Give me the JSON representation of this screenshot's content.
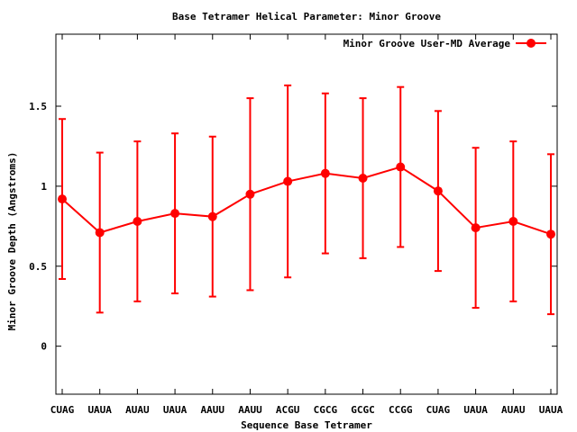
{
  "chart_data": {
    "type": "line",
    "title": "Base Tetramer Helical Parameter: Minor Groove",
    "xlabel": "Sequence Base Tetramer",
    "ylabel": "Minor Groove Depth (Angstroms)",
    "ylim": [
      -0.3,
      1.95
    ],
    "yticks": [
      {
        "value": 0,
        "label": "0"
      },
      {
        "value": 0.5,
        "label": "0.5"
      },
      {
        "value": 1,
        "label": "1"
      },
      {
        "value": 1.5,
        "label": "1.5"
      }
    ],
    "grid": false,
    "legend_position": "top-right",
    "categories": [
      "CUAG",
      "UAUA",
      "AUAU",
      "UAUA",
      "AAUU",
      "AAUU",
      "ACGU",
      "CGCG",
      "GCGC",
      "CCGG",
      "CUAG",
      "UAUA",
      "AUAU",
      "UAUA"
    ],
    "series": [
      {
        "name": "Minor Groove User-MD Average",
        "color": "#ff0000",
        "values": [
          0.92,
          0.71,
          0.78,
          0.83,
          0.81,
          0.95,
          1.03,
          1.08,
          1.05,
          1.12,
          0.97,
          0.74,
          0.78,
          0.7
        ],
        "error_low": [
          0.42,
          0.21,
          0.28,
          0.33,
          0.31,
          0.35,
          0.43,
          0.58,
          0.55,
          0.62,
          0.47,
          0.24,
          0.28,
          0.2
        ],
        "error_high": [
          1.42,
          1.21,
          1.28,
          1.33,
          1.31,
          1.55,
          1.63,
          1.58,
          1.55,
          1.62,
          1.47,
          1.24,
          1.28,
          1.2
        ]
      }
    ]
  }
}
